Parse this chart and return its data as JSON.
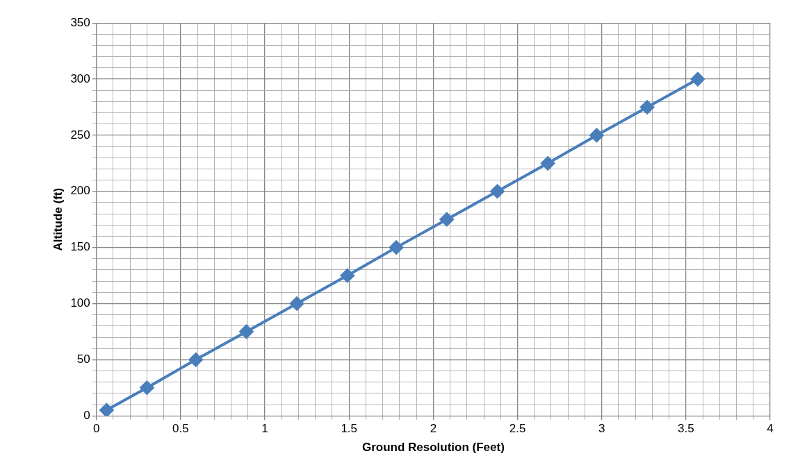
{
  "chart_data": {
    "type": "line",
    "xlabel": "Ground Resolution (Feet)",
    "ylabel": "Altitude (ft)",
    "x": [
      0.06,
      0.3,
      0.59,
      0.89,
      1.19,
      1.49,
      1.78,
      2.08,
      2.38,
      2.68,
      2.97,
      3.27,
      3.57
    ],
    "series": [
      {
        "color": "#4a7ebb",
        "values": [
          5,
          25,
          50,
          75,
          100,
          125,
          150,
          175,
          200,
          225,
          250,
          275,
          300
        ]
      }
    ],
    "xlim": [
      0,
      4
    ],
    "xticks": [
      0,
      {
        "value": 0.1,
        "label": null
      },
      {
        "value": 0.2,
        "label": null
      },
      {
        "value": 0.3,
        "label": null
      },
      {
        "value": 0.4,
        "label": null
      },
      0.5,
      {
        "value": 0.6,
        "label": null
      },
      {
        "value": 0.7,
        "label": null
      },
      {
        "value": 0.8,
        "label": null
      },
      {
        "value": 0.9,
        "label": null
      },
      1,
      {
        "value": 1.1,
        "label": null
      },
      {
        "value": 1.2,
        "label": null
      },
      {
        "value": 1.3,
        "label": null
      },
      {
        "value": 1.4,
        "label": null
      },
      1.5,
      {
        "value": 1.6,
        "label": null
      },
      {
        "value": 1.7,
        "label": null
      },
      {
        "value": 1.8,
        "label": null
      },
      {
        "value": 1.9,
        "label": null
      },
      2,
      {
        "value": 2.1,
        "label": null
      },
      {
        "value": 2.2,
        "label": null
      },
      {
        "value": 2.3,
        "label": null
      },
      {
        "value": 2.4,
        "label": null
      },
      2.5,
      {
        "value": 2.6,
        "label": null
      },
      {
        "value": 2.7,
        "label": null
      },
      {
        "value": 2.8,
        "label": null
      },
      {
        "value": 2.9,
        "label": null
      },
      3,
      {
        "value": 3.1,
        "label": null
      },
      {
        "value": 3.2,
        "label": null
      },
      {
        "value": 3.3,
        "label": null
      },
      {
        "value": 3.4,
        "label": null
      },
      3.5,
      {
        "value": 3.6,
        "label": null
      },
      {
        "value": 3.7,
        "label": null
      },
      {
        "value": 3.8,
        "label": null
      },
      {
        "value": 3.9,
        "label": null
      },
      4
    ],
    "ylim": [
      0,
      350
    ],
    "yticks": [
      0,
      {
        "value": 10,
        "label": null
      },
      {
        "value": 20,
        "label": null
      },
      {
        "value": 30,
        "label": null
      },
      {
        "value": 40,
        "label": null
      },
      50,
      {
        "value": 60,
        "label": null
      },
      {
        "value": 70,
        "label": null
      },
      {
        "value": 80,
        "label": null
      },
      {
        "value": 90,
        "label": null
      },
      100,
      {
        "value": 110,
        "label": null
      },
      {
        "value": 120,
        "label": null
      },
      {
        "value": 130,
        "label": null
      },
      {
        "value": 140,
        "label": null
      },
      150,
      {
        "value": 160,
        "label": null
      },
      {
        "value": 170,
        "label": null
      },
      {
        "value": 180,
        "label": null
      },
      {
        "value": 190,
        "label": null
      },
      200,
      {
        "value": 210,
        "label": null
      },
      {
        "value": 220,
        "label": null
      },
      {
        "value": 230,
        "label": null
      },
      {
        "value": 240,
        "label": null
      },
      250,
      {
        "value": 260,
        "label": null
      },
      {
        "value": 270,
        "label": null
      },
      {
        "value": 280,
        "label": null
      },
      {
        "value": 290,
        "label": null
      },
      300,
      {
        "value": 310,
        "label": null
      },
      {
        "value": 320,
        "label": null
      },
      {
        "value": 330,
        "label": null
      },
      {
        "value": 340,
        "label": null
      },
      350
    ],
    "grid": true,
    "legend": false,
    "marker": "diamond",
    "line_style": "solid"
  }
}
